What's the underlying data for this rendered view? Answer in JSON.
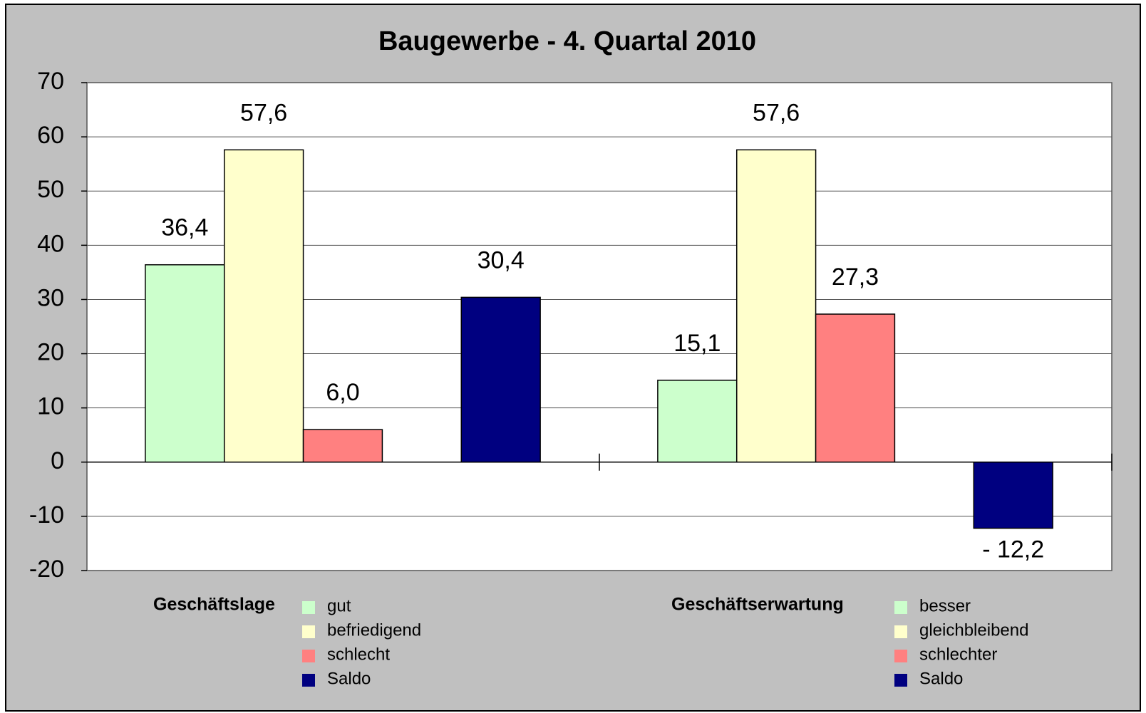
{
  "chart_data": {
    "type": "bar",
    "title": "Baugewerbe - 4. Quartal 2010",
    "ylim": [
      -20,
      70
    ],
    "yticks": [
      -20,
      -10,
      0,
      10,
      20,
      30,
      40,
      50,
      60,
      70
    ],
    "grid": true,
    "groups": [
      {
        "name": "Geschäftslage",
        "series": [
          {
            "name": "gut",
            "color": "#ccffcc",
            "values": [
              36.4
            ],
            "value_labels": [
              "36,4"
            ]
          },
          {
            "name": "befriedigend",
            "color": "#ffffcc",
            "values": [
              57.6
            ],
            "value_labels": [
              "57,6"
            ]
          },
          {
            "name": "schlecht",
            "color": "#ff8080",
            "values": [
              6.0
            ],
            "value_labels": [
              "6,0"
            ]
          },
          {
            "name": "Saldo",
            "color": "#000080",
            "values": [
              30.4
            ],
            "value_labels": [
              "30,4"
            ]
          }
        ]
      },
      {
        "name": "Geschäftserwartung",
        "series": [
          {
            "name": "besser",
            "color": "#ccffcc",
            "values": [
              15.1
            ],
            "value_labels": [
              "15,1"
            ]
          },
          {
            "name": "gleichbleibend",
            "color": "#ffffcc",
            "values": [
              57.6
            ],
            "value_labels": [
              "57,6"
            ]
          },
          {
            "name": "schlechter",
            "color": "#ff8080",
            "values": [
              27.3
            ],
            "value_labels": [
              "27,3"
            ]
          },
          {
            "name": "Saldo",
            "color": "#000080",
            "values": [
              -12.2
            ],
            "value_labels": [
              "- 12,2"
            ]
          }
        ]
      }
    ]
  }
}
